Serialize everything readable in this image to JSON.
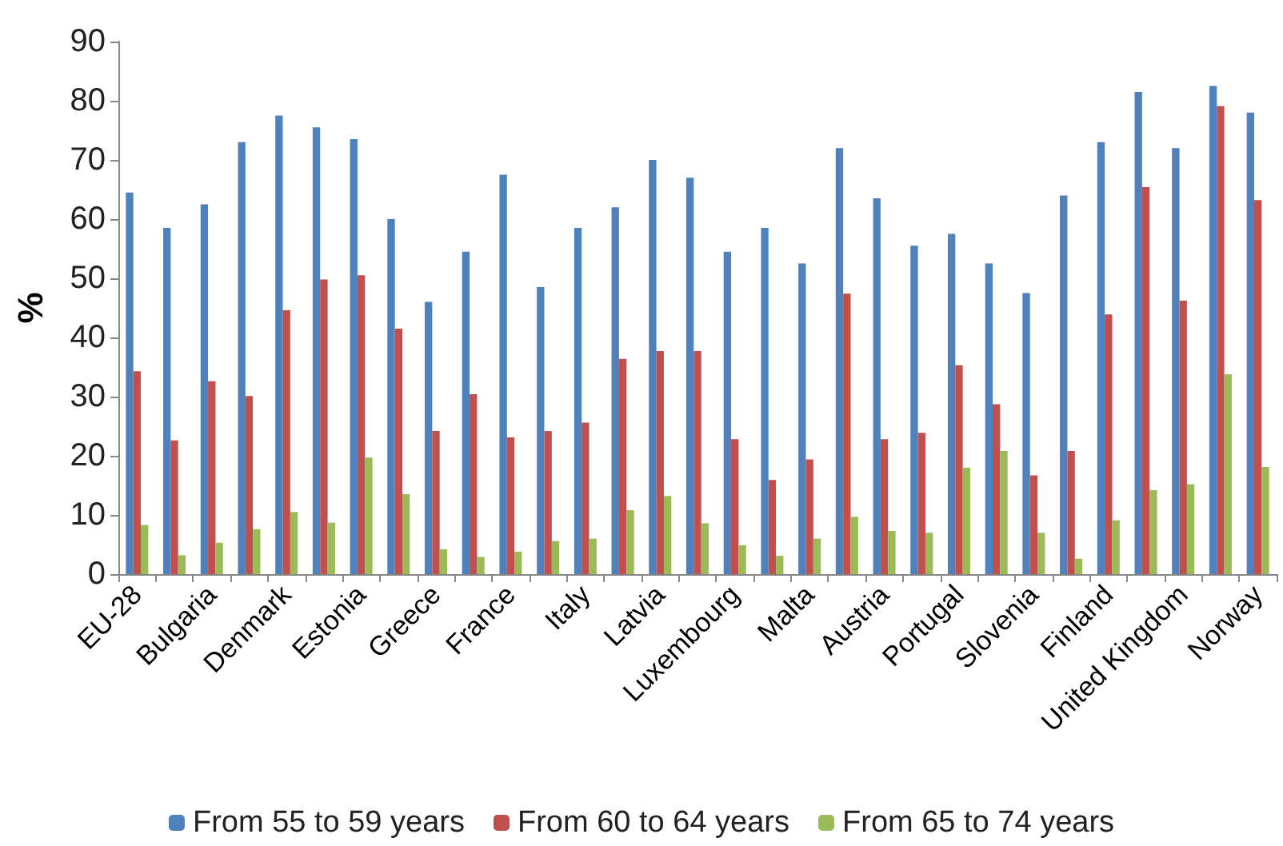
{
  "chart_data": {
    "type": "bar",
    "ylabel": "%",
    "categories": [
      "EU-28",
      null,
      "Bulgaria",
      null,
      "Denmark",
      null,
      "Estonia",
      null,
      "Greece",
      null,
      "France",
      null,
      "Italy",
      null,
      "Latvia",
      null,
      "Luxembourg",
      null,
      "Malta",
      null,
      "Austria",
      null,
      "Portugal",
      null,
      "Slovenia",
      null,
      "Finland",
      null,
      "United Kingdom",
      null,
      "Norway"
    ],
    "series": [
      {
        "name": "From 55 to 59 years",
        "color": "#4f81bd",
        "values": [
          64.5,
          58.5,
          62.5,
          73,
          77.5,
          75.5,
          73.5,
          60,
          46,
          54.5,
          67.5,
          48.5,
          58.5,
          62,
          70,
          67,
          54.5,
          58.5,
          52.5,
          72,
          63.5,
          55.5,
          57.5,
          52.5,
          47.5,
          64,
          73,
          81.5,
          72,
          82.5,
          78
        ]
      },
      {
        "name": "From 60 to 64 years",
        "color": "#c0504d",
        "values": [
          34.3,
          22.6,
          32.6,
          30.1,
          44.6,
          49.8,
          50.5,
          41.5,
          24.2,
          30.4,
          23.1,
          24.2,
          25.6,
          36.4,
          37.7,
          37.7,
          22.8,
          15.9,
          19.4,
          47.4,
          22.8,
          23.9,
          35.3,
          28.7,
          16.7,
          20.8,
          43.9,
          65.4,
          46.2,
          79.1,
          63.2
        ]
      },
      {
        "name": "From 65 to 74 years",
        "color": "#9bbb59",
        "values": [
          8.3,
          3.2,
          5.3,
          7.6,
          10.5,
          8.7,
          19.7,
          13.5,
          4.2,
          2.9,
          3.8,
          5.6,
          6.0,
          10.8,
          13.2,
          8.6,
          4.9,
          3.1,
          6.0,
          9.7,
          7.3,
          7.0,
          18.0,
          20.8,
          7.0,
          2.6,
          9.1,
          14.2,
          15.2,
          33.8,
          18.1
        ]
      }
    ],
    "ylim": [
      0,
      90
    ],
    "yticks": [
      0,
      10,
      20,
      30,
      40,
      50,
      60,
      70,
      80,
      90
    ],
    "grid": false,
    "legend": "bottom"
  }
}
